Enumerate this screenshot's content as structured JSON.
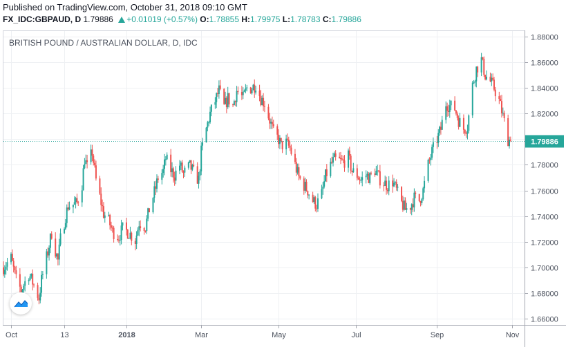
{
  "header": {
    "published": "Published on TradingView.com, October 31, 2018 09:10 GMT",
    "symbol": "FX_IDC:GBPAUD, D",
    "last": "1.79886",
    "change": "+0.01019 (+0.57%)",
    "open_label": "O:",
    "open": "1.78855",
    "high_label": "H:",
    "high": "1.79975",
    "low_label": "L:",
    "low": "1.78783",
    "close_label": "C:",
    "close": "1.79886"
  },
  "colors": {
    "up": "#26a69a",
    "down": "#ef5350",
    "grid": "#eef0f3",
    "axis_text": "#4c525e",
    "price_tag": "#26a69a"
  },
  "logo": {
    "icon": "tradingview-logo-icon"
  },
  "chart_data": {
    "type": "candlestick",
    "title": "BRITISH POUND / AUSTRALIAN DOLLAR, D, IDC",
    "xlabel": "",
    "ylabel": "",
    "ylim": [
      1.655,
      1.885
    ],
    "grid": true,
    "last_price_label": "1.79886",
    "last_price": 1.79886,
    "y_ticks": [
      {
        "value": 1.66,
        "label": "1.66000"
      },
      {
        "value": 1.68,
        "label": "1.68000"
      },
      {
        "value": 1.7,
        "label": "1.70000"
      },
      {
        "value": 1.72,
        "label": "1.72000"
      },
      {
        "value": 1.74,
        "label": "1.74000"
      },
      {
        "value": 1.76,
        "label": "1.76000"
      },
      {
        "value": 1.78,
        "label": "1.78000"
      },
      {
        "value": 1.8,
        "label": "1.80000"
      },
      {
        "value": 1.82,
        "label": "1.82000"
      },
      {
        "value": 1.84,
        "label": "1.84000"
      },
      {
        "value": 1.86,
        "label": "1.86000"
      },
      {
        "value": 1.88,
        "label": "1.88000"
      }
    ],
    "x_ticks": [
      {
        "date": "2017-10-02",
        "label": "Oct",
        "bold": false
      },
      {
        "date": "2017-11-13",
        "label": "13",
        "bold": false
      },
      {
        "date": "2018-01-01",
        "label": "2018",
        "bold": true
      },
      {
        "date": "2018-03-01",
        "label": "Mar",
        "bold": false
      },
      {
        "date": "2018-05-01",
        "label": "May",
        "bold": false
      },
      {
        "date": "2018-07-01",
        "label": "Jul",
        "bold": false
      },
      {
        "date": "2018-09-03",
        "label": "Sep",
        "bold": false
      },
      {
        "date": "2018-11-01",
        "label": "Nov",
        "bold": false
      }
    ],
    "x_range": [
      "2017-09-26",
      "2018-11-11"
    ],
    "closes": [
      [
        "2017-09-26",
        1.7
      ],
      [
        "2017-10-02",
        1.707
      ],
      [
        "2017-10-06",
        1.69
      ],
      [
        "2017-10-10",
        1.682
      ],
      [
        "2017-10-16",
        1.695
      ],
      [
        "2017-10-20",
        1.686
      ],
      [
        "2017-10-24",
        1.676
      ],
      [
        "2017-10-26",
        1.69
      ],
      [
        "2017-10-31",
        1.712
      ],
      [
        "2017-11-03",
        1.727
      ],
      [
        "2017-11-06",
        1.713
      ],
      [
        "2017-11-08",
        1.705
      ],
      [
        "2017-11-10",
        1.722
      ],
      [
        "2017-11-14",
        1.74
      ],
      [
        "2017-11-16",
        1.748
      ],
      [
        "2017-11-20",
        1.749
      ],
      [
        "2017-11-23",
        1.75
      ],
      [
        "2017-11-27",
        1.765
      ],
      [
        "2017-11-29",
        1.785
      ],
      [
        "2017-12-01",
        1.778
      ],
      [
        "2017-12-05",
        1.79
      ],
      [
        "2017-12-08",
        1.768
      ],
      [
        "2017-12-11",
        1.755
      ],
      [
        "2017-12-14",
        1.742
      ],
      [
        "2017-12-18",
        1.736
      ],
      [
        "2017-12-21",
        1.728
      ],
      [
        "2017-12-26",
        1.724
      ],
      [
        "2017-12-29",
        1.73
      ],
      [
        "2018-01-03",
        1.727
      ],
      [
        "2018-01-08",
        1.721
      ],
      [
        "2018-01-11",
        1.735
      ],
      [
        "2018-01-16",
        1.732
      ],
      [
        "2018-01-19",
        1.745
      ],
      [
        "2018-01-24",
        1.762
      ],
      [
        "2018-01-26",
        1.77
      ],
      [
        "2018-01-30",
        1.775
      ],
      [
        "2018-02-01",
        1.785
      ],
      [
        "2018-02-05",
        1.776
      ],
      [
        "2018-02-08",
        1.772
      ],
      [
        "2018-02-12",
        1.78
      ],
      [
        "2018-02-15",
        1.773
      ],
      [
        "2018-02-20",
        1.779
      ],
      [
        "2018-02-23",
        1.774
      ],
      [
        "2018-02-27",
        1.768
      ],
      [
        "2018-03-01",
        1.79
      ],
      [
        "2018-03-05",
        1.808
      ],
      [
        "2018-03-08",
        1.82
      ],
      [
        "2018-03-12",
        1.83
      ],
      [
        "2018-03-15",
        1.838
      ],
      [
        "2018-03-19",
        1.825
      ],
      [
        "2018-03-22",
        1.832
      ],
      [
        "2018-03-26",
        1.826
      ],
      [
        "2018-03-29",
        1.838
      ],
      [
        "2018-04-03",
        1.832
      ],
      [
        "2018-04-06",
        1.84
      ],
      [
        "2018-04-10",
        1.84
      ],
      [
        "2018-04-13",
        1.843
      ],
      [
        "2018-04-17",
        1.832
      ],
      [
        "2018-04-20",
        1.828
      ],
      [
        "2018-04-24",
        1.815
      ],
      [
        "2018-04-27",
        1.805
      ],
      [
        "2018-05-01",
        1.8
      ],
      [
        "2018-05-03",
        1.795
      ],
      [
        "2018-05-07",
        1.797
      ],
      [
        "2018-05-10",
        1.793
      ],
      [
        "2018-05-14",
        1.78
      ],
      [
        "2018-05-17",
        1.77
      ],
      [
        "2018-05-21",
        1.764
      ],
      [
        "2018-05-24",
        1.76
      ],
      [
        "2018-05-28",
        1.752
      ],
      [
        "2018-05-31",
        1.749
      ],
      [
        "2018-06-04",
        1.757
      ],
      [
        "2018-06-07",
        1.771
      ],
      [
        "2018-06-11",
        1.78
      ],
      [
        "2018-06-14",
        1.784
      ],
      [
        "2018-06-18",
        1.783
      ],
      [
        "2018-06-21",
        1.782
      ],
      [
        "2018-06-25",
        1.786
      ],
      [
        "2018-06-28",
        1.775
      ],
      [
        "2018-07-02",
        1.772
      ],
      [
        "2018-07-05",
        1.768
      ],
      [
        "2018-07-09",
        1.772
      ],
      [
        "2018-07-12",
        1.77
      ],
      [
        "2018-07-16",
        1.776
      ],
      [
        "2018-07-19",
        1.77
      ],
      [
        "2018-07-23",
        1.766
      ],
      [
        "2018-07-26",
        1.764
      ],
      [
        "2018-07-30",
        1.767
      ],
      [
        "2018-08-02",
        1.76
      ],
      [
        "2018-08-06",
        1.75
      ],
      [
        "2018-08-09",
        1.745
      ],
      [
        "2018-08-13",
        1.748
      ],
      [
        "2018-08-16",
        1.754
      ],
      [
        "2018-08-20",
        1.752
      ],
      [
        "2018-08-23",
        1.76
      ],
      [
        "2018-08-27",
        1.78
      ],
      [
        "2018-08-30",
        1.79
      ],
      [
        "2018-09-03",
        1.8
      ],
      [
        "2018-09-06",
        1.808
      ],
      [
        "2018-09-10",
        1.828
      ],
      [
        "2018-09-13",
        1.826
      ],
      [
        "2018-09-17",
        1.824
      ],
      [
        "2018-09-20",
        1.815
      ],
      [
        "2018-09-24",
        1.808
      ],
      [
        "2018-09-27",
        1.81
      ],
      [
        "2018-10-01",
        1.842
      ],
      [
        "2018-10-04",
        1.855
      ],
      [
        "2018-10-08",
        1.862
      ],
      [
        "2018-10-11",
        1.85
      ],
      [
        "2018-10-15",
        1.845
      ],
      [
        "2018-10-18",
        1.84
      ],
      [
        "2018-10-22",
        1.83
      ],
      [
        "2018-10-25",
        1.818
      ],
      [
        "2018-10-29",
        1.8
      ],
      [
        "2018-10-31",
        1.79886
      ]
    ]
  }
}
